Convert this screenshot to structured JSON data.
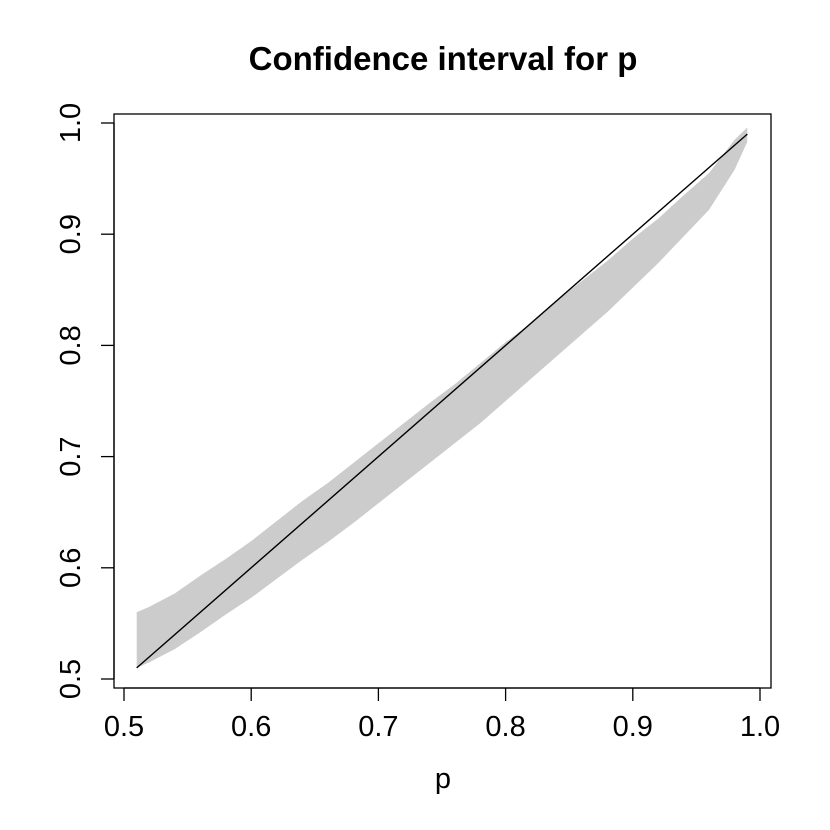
{
  "chart_data": {
    "type": "area",
    "title": "Confidence interval for p",
    "xlabel": "p",
    "ylabel": "",
    "xlim": [
      0.5,
      1.0
    ],
    "ylim": [
      0.5,
      1.0
    ],
    "xticks": [
      "0.5",
      "0.6",
      "0.7",
      "0.8",
      "0.9",
      "1.0"
    ],
    "yticks": [
      "0.5",
      "0.6",
      "0.7",
      "0.8",
      "0.9",
      "1.0"
    ],
    "grid": false,
    "series": [
      {
        "kind": "band",
        "color": "#cccccc",
        "x": [
          0.51,
          0.52,
          0.54,
          0.56,
          0.58,
          0.6,
          0.62,
          0.64,
          0.66,
          0.68,
          0.7,
          0.72,
          0.74,
          0.76,
          0.78,
          0.8,
          0.82,
          0.84,
          0.86,
          0.88,
          0.9,
          0.92,
          0.94,
          0.96,
          0.98,
          0.99
        ],
        "lower": [
          0.51,
          0.515,
          0.527,
          0.542,
          0.558,
          0.573,
          0.59,
          0.607,
          0.623,
          0.64,
          0.658,
          0.676,
          0.694,
          0.712,
          0.73,
          0.75,
          0.77,
          0.79,
          0.81,
          0.83,
          0.852,
          0.874,
          0.898,
          0.922,
          0.958,
          0.983
        ],
        "upper": [
          0.56,
          0.565,
          0.577,
          0.593,
          0.608,
          0.624,
          0.642,
          0.66,
          0.676,
          0.694,
          0.712,
          0.73,
          0.748,
          0.765,
          0.784,
          0.803,
          0.82,
          0.84,
          0.858,
          0.876,
          0.896,
          0.914,
          0.935,
          0.955,
          0.985,
          0.996
        ]
      },
      {
        "kind": "line",
        "color": "#000000",
        "x": [
          0.51,
          0.99
        ],
        "y": [
          0.51,
          0.99
        ]
      }
    ]
  }
}
